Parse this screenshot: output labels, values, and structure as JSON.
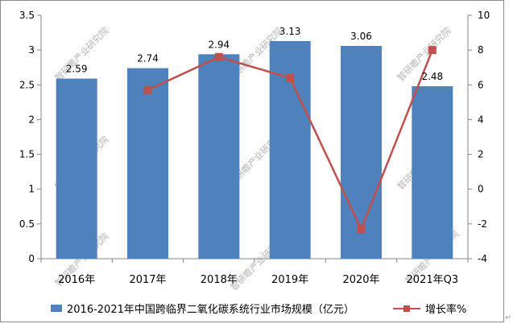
{
  "chart_data": {
    "type": "bar+line",
    "categories": [
      "2016年",
      "2017年",
      "2018年",
      "2019年",
      "2020年",
      "2021年Q3"
    ],
    "series": [
      {
        "name": "2016-2021年中国跨临界二氧化碳系统行业市场规模（亿元）",
        "type": "bar",
        "axis": "left",
        "color": "#4f81bd",
        "values": [
          2.59,
          2.74,
          2.94,
          3.13,
          3.06,
          2.48
        ],
        "labels": [
          "2.59",
          "2.74",
          "2.94",
          "3.13",
          "3.06",
          "2.48"
        ]
      },
      {
        "name": "增长率%",
        "type": "line",
        "axis": "right",
        "color": "#c0504d",
        "values": [
          null,
          5.7,
          7.6,
          6.4,
          -2.3,
          8.0
        ]
      }
    ],
    "y_left": {
      "min": 0,
      "max": 3.5,
      "step": 0.5,
      "ticks": [
        "0",
        "0.5",
        "1",
        "1.5",
        "2",
        "2.5",
        "3",
        "3.5"
      ]
    },
    "y_right": {
      "min": -4,
      "max": 10,
      "step": 2,
      "ticks": [
        "-4",
        "-2",
        "0",
        "2",
        "4",
        "6",
        "8",
        "10"
      ]
    },
    "grid": false,
    "legend": "bottom",
    "watermark": "智研瞻产业研究院"
  }
}
